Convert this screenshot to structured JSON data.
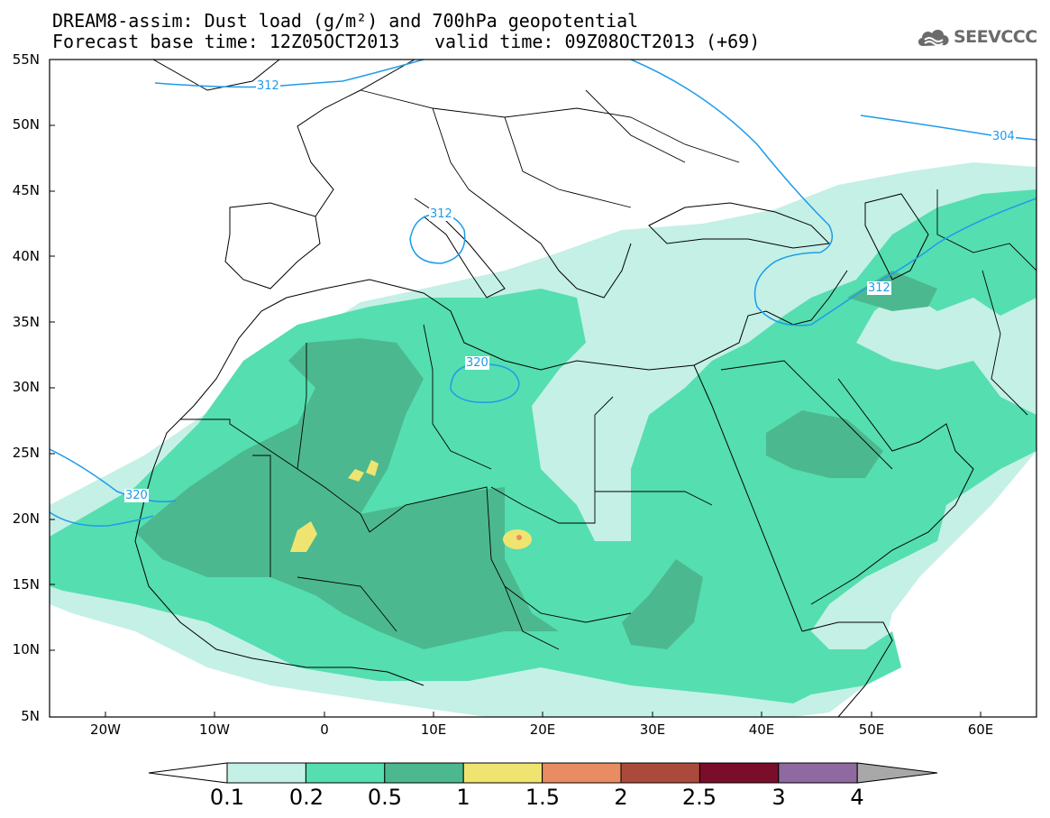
{
  "header": {
    "title_line1": "DREAM8-assim: Dust load (g/m²) and 700hPa geopotential",
    "title_line2": "Forecast base time: 12Z05OCT2013",
    "valid_time": "valid time: 09Z08OCT2013 (+69)",
    "logo_text": "SEEVCCC"
  },
  "axes": {
    "lat_labels": [
      "55N",
      "50N",
      "45N",
      "40N",
      "35N",
      "30N",
      "25N",
      "20N",
      "15N",
      "10N",
      "5N"
    ],
    "lon_labels": [
      "20W",
      "10W",
      "0",
      "10E",
      "20E",
      "30E",
      "40E",
      "50E",
      "60E"
    ]
  },
  "contours": {
    "geopotential_labels": [
      "312",
      "304",
      "312",
      "312",
      "320",
      "320"
    ],
    "color": "#1e9bea"
  },
  "colorbar": {
    "labels": [
      "0.1",
      "0.2",
      "0.5",
      "1",
      "1.5",
      "2",
      "2.5",
      "3",
      "4"
    ],
    "colors": [
      "#c4f0e6",
      "#55deb0",
      "#4cb88f",
      "#f0e470",
      "#e88c62",
      "#ab4a3c",
      "#7a0e2a",
      "#8e6aa0",
      "#a8a8a8"
    ]
  },
  "legend_colors": {
    "level_0_1": "#c4f0e6",
    "level_0_2": "#55deb0",
    "level_0_5": "#4cb88f",
    "level_1": "#f0e470",
    "level_1_5": "#e88c62"
  }
}
